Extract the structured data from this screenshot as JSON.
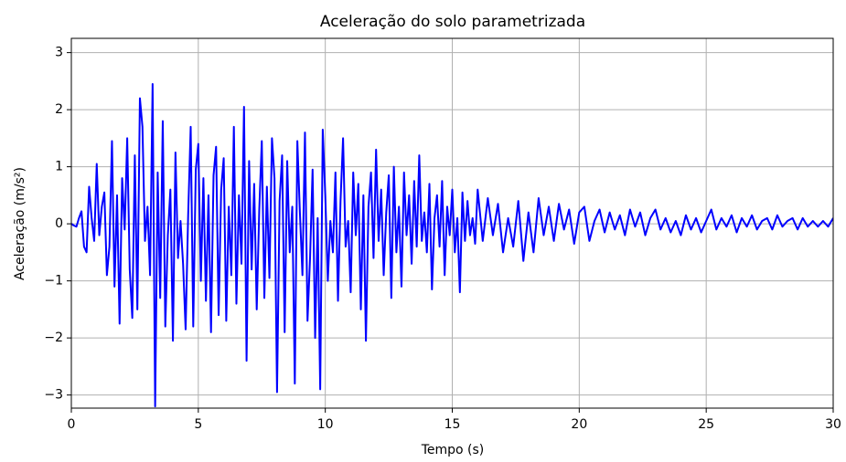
{
  "chart_data": {
    "type": "line",
    "title": "Aceleração do solo parametrizada",
    "xlabel": "Tempo (s)",
    "ylabel": "Aceleração (m/s²)",
    "x": [
      0,
      0.1,
      0.2,
      0.3,
      0.4,
      0.5,
      0.6,
      0.7,
      0.8,
      0.9,
      1,
      1.1,
      1.2,
      1.3,
      1.4,
      1.5,
      1.6,
      1.7,
      1.8,
      1.9,
      2,
      2.1,
      2.2,
      2.3,
      2.4,
      2.5,
      2.6,
      2.7,
      2.8,
      2.9,
      3,
      3.1,
      3.2,
      3.3,
      3.4,
      3.5,
      3.6,
      3.7,
      3.8,
      3.9,
      4,
      4.1,
      4.2,
      4.3,
      4.4,
      4.5,
      4.6,
      4.7,
      4.8,
      4.9,
      5,
      5.1,
      5.2,
      5.3,
      5.4,
      5.5,
      5.6,
      5.7,
      5.8,
      5.9,
      6,
      6.1,
      6.2,
      6.3,
      6.4,
      6.5,
      6.6,
      6.7,
      6.8,
      6.9,
      7,
      7.1,
      7.2,
      7.3,
      7.4,
      7.5,
      7.6,
      7.7,
      7.8,
      7.9,
      8,
      8.1,
      8.2,
      8.3,
      8.4,
      8.5,
      8.6,
      8.7,
      8.8,
      8.9,
      9,
      9.1,
      9.2,
      9.3,
      9.4,
      9.5,
      9.6,
      9.7,
      9.8,
      9.9,
      10,
      10.1,
      10.2,
      10.3,
      10.4,
      10.5,
      10.6,
      10.7,
      10.8,
      10.9,
      11,
      11.1,
      11.2,
      11.3,
      11.4,
      11.5,
      11.6,
      11.7,
      11.8,
      11.9,
      12,
      12.1,
      12.2,
      12.3,
      12.4,
      12.5,
      12.6,
      12.7,
      12.8,
      12.9,
      13,
      13.1,
      13.2,
      13.3,
      13.4,
      13.5,
      13.6,
      13.7,
      13.8,
      13.9,
      14,
      14.1,
      14.2,
      14.3,
      14.4,
      14.5,
      14.6,
      14.7,
      14.8,
      14.9,
      15,
      15.1,
      15.2,
      15.3,
      15.4,
      15.5,
      15.6,
      15.7,
      15.8,
      15.9,
      16,
      16.2,
      16.4,
      16.6,
      16.8,
      17,
      17.2,
      17.4,
      17.6,
      17.8,
      18,
      18.2,
      18.4,
      18.6,
      18.8,
      19,
      19.2,
      19.4,
      19.6,
      19.8,
      20,
      20.2,
      20.4,
      20.6,
      20.8,
      21,
      21.2,
      21.4,
      21.6,
      21.8,
      22,
      22.2,
      22.4,
      22.6,
      22.8,
      23,
      23.2,
      23.4,
      23.6,
      23.8,
      24,
      24.2,
      24.4,
      24.6,
      24.8,
      25,
      25.2,
      25.4,
      25.6,
      25.8,
      26,
      26.2,
      26.4,
      26.6,
      26.8,
      27,
      27.2,
      27.4,
      27.6,
      27.8,
      28,
      28.2,
      28.4,
      28.6,
      28.8,
      29,
      29.2,
      29.4,
      29.6,
      29.8,
      30
    ],
    "series": [
      {
        "name": "Aceleração",
        "color": "#0000ff",
        "values": [
          0,
          -0.03,
          -0.05,
          0.1,
          0.22,
          -0.4,
          -0.5,
          0.65,
          0.1,
          -0.3,
          1.05,
          -0.2,
          0.3,
          0.55,
          -0.9,
          -0.4,
          1.45,
          -1.1,
          0.5,
          -1.75,
          0.8,
          -0.1,
          1.5,
          -0.8,
          -1.65,
          1.2,
          -1.5,
          2.2,
          1.7,
          -0.3,
          0.3,
          -0.9,
          2.45,
          -3.2,
          0.9,
          -1.3,
          1.8,
          -1.8,
          -0.2,
          0.6,
          -2.05,
          1.25,
          -0.6,
          0.05,
          -0.7,
          -1.85,
          0.15,
          1.7,
          -1.8,
          0.95,
          1.4,
          -1.0,
          0.8,
          -1.35,
          0.5,
          -1.9,
          0.85,
          1.35,
          -1.6,
          0.6,
          1.15,
          -1.7,
          0.3,
          -0.9,
          1.7,
          -1.4,
          0.5,
          -0.7,
          2.05,
          -2.4,
          1.1,
          -0.8,
          0.7,
          -1.5,
          0.25,
          1.45,
          -1.3,
          0.65,
          -0.95,
          1.5,
          0.8,
          -2.95,
          0.4,
          1.2,
          -1.9,
          1.1,
          -0.5,
          0.3,
          -2.8,
          1.45,
          0.2,
          -0.9,
          1.6,
          -1.7,
          -0.6,
          0.95,
          -2.0,
          0.1,
          -2.9,
          1.65,
          0.5,
          -1.0,
          0.05,
          -0.5,
          0.9,
          -1.35,
          0.4,
          1.5,
          -0.4,
          0.05,
          -1.2,
          0.9,
          -0.2,
          0.7,
          -1.5,
          0.5,
          -2.05,
          0.3,
          0.9,
          -0.6,
          1.3,
          -0.3,
          0.6,
          -0.9,
          0.2,
          0.85,
          -1.3,
          1.0,
          -0.5,
          0.3,
          -1.1,
          0.9,
          -0.2,
          0.5,
          -0.7,
          0.75,
          -0.4,
          1.2,
          -0.3,
          0.2,
          -0.5,
          0.7,
          -1.15,
          0.1,
          0.5,
          -0.4,
          0.75,
          -0.9,
          0.3,
          -0.2,
          0.6,
          -0.5,
          0.1,
          -1.2,
          0.55,
          -0.3,
          0.4,
          -0.2,
          0.1,
          -0.35,
          0.6,
          -0.3,
          0.45,
          -0.2,
          0.35,
          -0.5,
          0.1,
          -0.4,
          0.4,
          -0.65,
          0.2,
          -0.5,
          0.45,
          -0.2,
          0.3,
          -0.3,
          0.35,
          -0.1,
          0.25,
          -0.35,
          0.2,
          0.3,
          -0.3,
          0.05,
          0.25,
          -0.15,
          0.2,
          -0.1,
          0.15,
          -0.2,
          0.25,
          -0.05,
          0.2,
          -0.2,
          0.1,
          0.25,
          -0.1,
          0.1,
          -0.15,
          0.05,
          -0.2,
          0.15,
          -0.1,
          0.1,
          -0.15,
          0.05,
          0.25,
          -0.1,
          0.1,
          -0.05,
          0.15,
          -0.15,
          0.1,
          -0.05,
          0.15,
          -0.1,
          0.05,
          0.1,
          -0.1,
          0.15,
          -0.05,
          0.05,
          0.1,
          -0.1,
          0.1,
          -0.05,
          0.05,
          -0.05,
          0.05,
          -0.05,
          0.1
        ]
      }
    ],
    "xlim": [
      0,
      30
    ],
    "xticks": [
      0,
      5,
      10,
      15,
      20,
      25,
      30
    ],
    "ylim": [
      -3.23,
      3.25
    ],
    "yticks": [
      {
        "value": -3,
        "label": "−3"
      },
      {
        "value": -2,
        "label": "−2"
      },
      {
        "value": -1,
        "label": "−1"
      },
      0,
      1,
      2,
      3
    ],
    "grid": true
  }
}
